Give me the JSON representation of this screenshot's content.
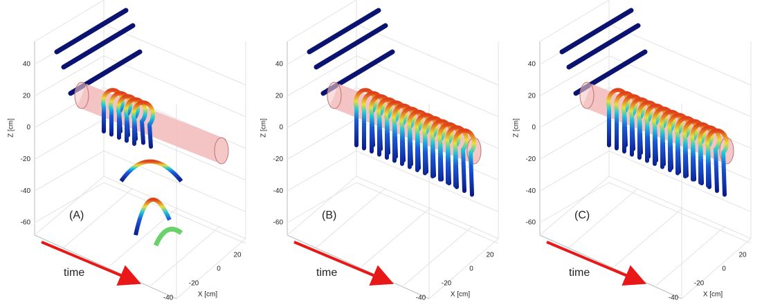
{
  "panels": [
    {
      "label": "(A)",
      "z_axis_label": "Z [cm]",
      "z_ticks": [
        40,
        20,
        0,
        -20,
        -40,
        -60
      ],
      "x_axis_label": "X [cm]",
      "x_ticks": [
        20,
        0,
        -20,
        -40
      ],
      "time_label": "time"
    },
    {
      "label": "(B)",
      "z_axis_label": "Z [cm]",
      "z_ticks": [
        40,
        20,
        0,
        -20,
        -40,
        -60
      ],
      "x_axis_label": "X [cm]",
      "x_ticks": [
        20,
        0,
        -20,
        -40
      ],
      "time_label": "time"
    },
    {
      "label": "(C)",
      "z_axis_label": "Z [cm]",
      "z_ticks": [
        40,
        20,
        0,
        -20,
        -40,
        -60
      ],
      "x_axis_label": "X [cm]",
      "x_ticks": [
        20,
        0,
        -20,
        -40
      ],
      "time_label": "time"
    }
  ]
}
